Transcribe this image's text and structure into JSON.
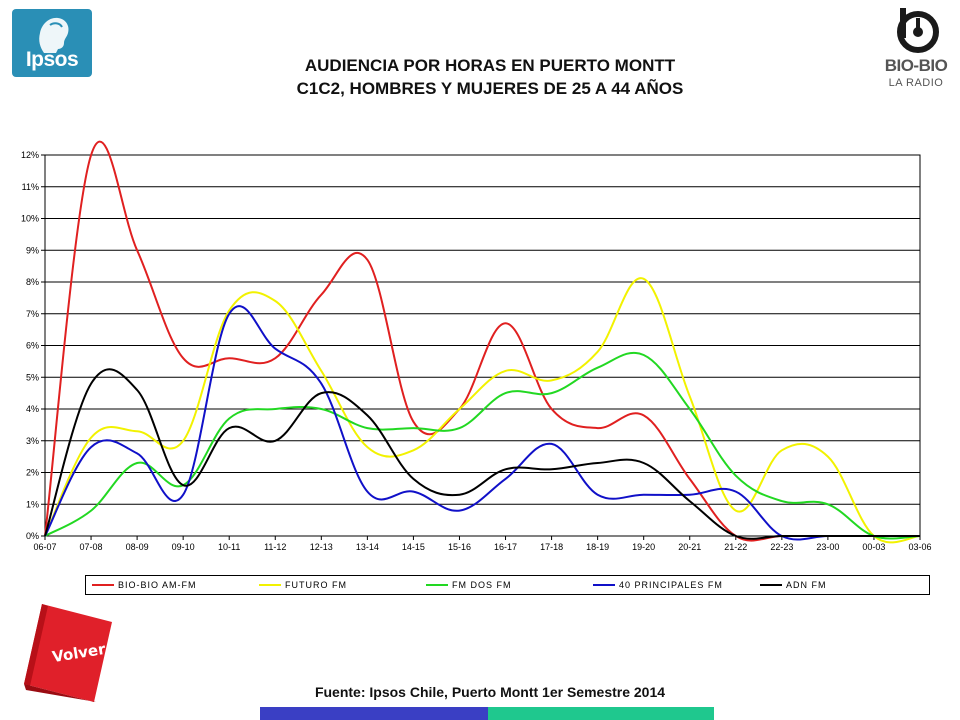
{
  "logos": {
    "ipsos": "Ipsos",
    "biobio_name": "BIO-BIO",
    "biobio_sub": "LA RADIO"
  },
  "title": {
    "line1": "AUDIENCIA POR HORAS EN PUERTO MONTT",
    "line2": "C1C2, HOMBRES Y MUJERES DE 25 A 44 AÑOS"
  },
  "volver_label": "Volver",
  "source": "Fuente: Ipsos Chile, Puerto Montt 1er Semestre 2014",
  "colors": {
    "ipsos_blue": "#2a8fb6",
    "volver_red": "#e0202a",
    "bar_blue": "#3a3fc4",
    "bar_green": "#1fc88e"
  },
  "chart_data": {
    "type": "line",
    "smooth": true,
    "grid": true,
    "legend_position": "bottom",
    "ylim": [
      0,
      12
    ],
    "yticks": [
      0,
      1,
      2,
      3,
      4,
      5,
      6,
      7,
      8,
      9,
      10,
      11,
      12
    ],
    "ytick_labels": [
      "0%",
      "1%",
      "2%",
      "3%",
      "4%",
      "5%",
      "6%",
      "7%",
      "8%",
      "9%",
      "10%",
      "11%",
      "12%"
    ],
    "categories": [
      "06-07",
      "07-08",
      "08-09",
      "09-10",
      "10-11",
      "11-12",
      "12-13",
      "13-14",
      "14-15",
      "15-16",
      "16-17",
      "17-18",
      "18-19",
      "19-20",
      "20-21",
      "21-22",
      "22-23",
      "23-00",
      "00-03",
      "03-06"
    ],
    "series": [
      {
        "name": "BIO-BIO AM-FM",
        "color": "#e02020",
        "values": [
          0,
          12.0,
          9.0,
          5.6,
          5.6,
          5.6,
          7.6,
          8.7,
          3.6,
          4.0,
          6.7,
          4.0,
          3.4,
          3.8,
          1.8,
          0.0,
          0.0,
          0.0,
          0.0,
          0.0
        ]
      },
      {
        "name": "FUTURO FM",
        "color": "#f2f200",
        "values": [
          0,
          3.1,
          3.3,
          3.0,
          7.1,
          7.4,
          5.2,
          2.8,
          2.7,
          4.0,
          5.2,
          4.9,
          5.8,
          8.1,
          4.4,
          0.8,
          2.7,
          2.5,
          0.0,
          0.0
        ]
      },
      {
        "name": "FM DOS FM",
        "color": "#22d822",
        "values": [
          0,
          0.8,
          2.3,
          1.6,
          3.7,
          4.0,
          4.0,
          3.4,
          3.4,
          3.4,
          4.5,
          4.5,
          5.3,
          5.7,
          4.0,
          1.9,
          1.1,
          1.0,
          0.0,
          0.0
        ]
      },
      {
        "name": "40 PRINCIPALES FM",
        "color": "#1010c8",
        "values": [
          0,
          2.8,
          2.6,
          1.3,
          7.0,
          5.9,
          4.8,
          1.4,
          1.4,
          0.8,
          1.8,
          2.9,
          1.3,
          1.3,
          1.3,
          1.4,
          0.0,
          0.0,
          0.0,
          0.0
        ]
      },
      {
        "name": "ADN FM",
        "color": "#000000",
        "values": [
          0,
          4.8,
          4.6,
          1.6,
          3.4,
          3.0,
          4.5,
          3.8,
          1.8,
          1.3,
          2.1,
          2.1,
          2.3,
          2.3,
          1.1,
          0.0,
          0.0,
          0.0,
          0.0,
          0.0
        ]
      }
    ]
  }
}
